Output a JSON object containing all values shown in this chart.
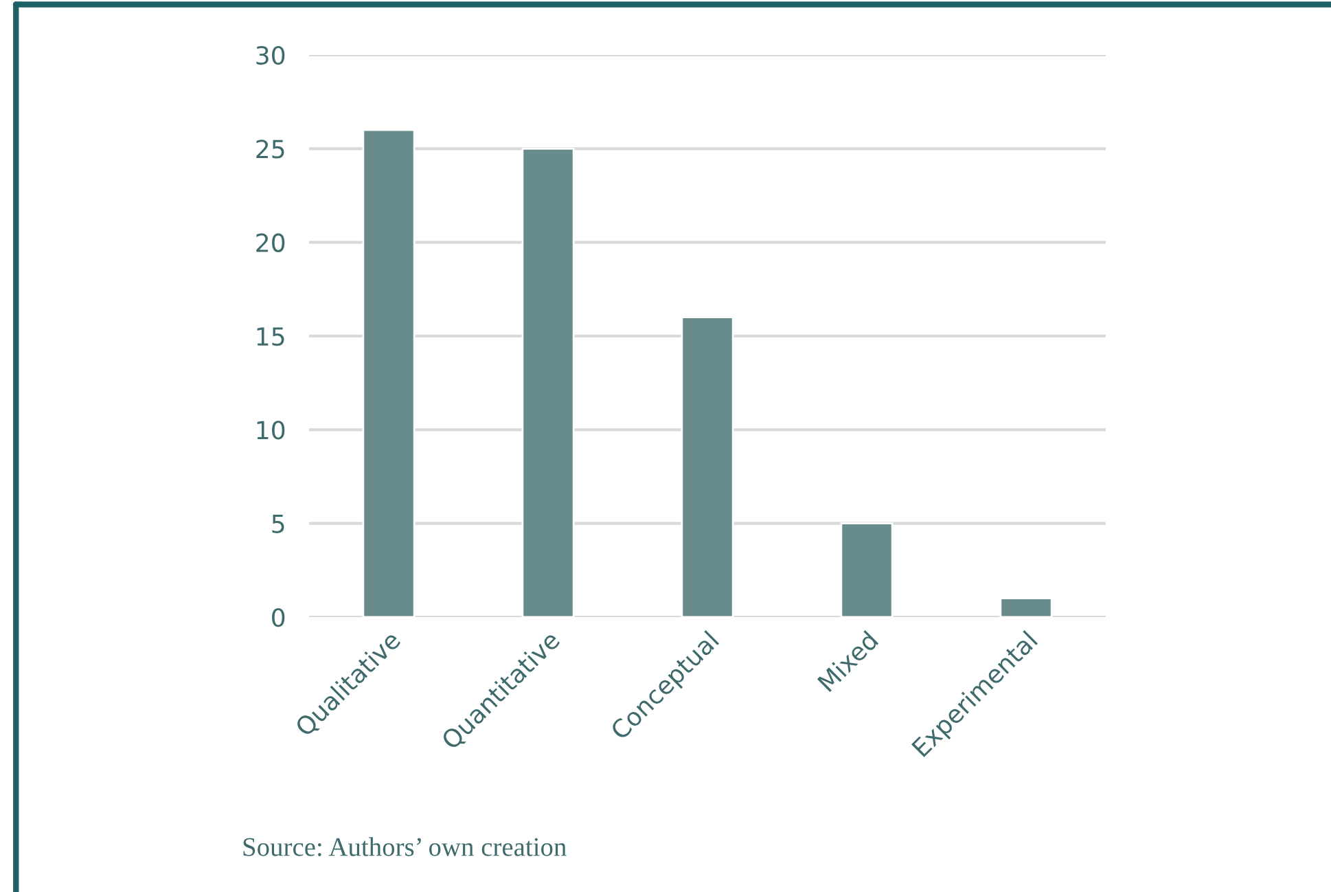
{
  "chart_data": {
    "type": "bar",
    "categories": [
      "Qualitative",
      "Quantitative",
      "Conceptual",
      "Mixed",
      "Experimental"
    ],
    "values": [
      26,
      25,
      16,
      5,
      1
    ],
    "color": "#688c8c",
    "ylim": [
      0,
      30
    ],
    "yticks": [
      0,
      5,
      10,
      15,
      20,
      25,
      30
    ],
    "grid": "y",
    "annotations": [
      "Source: Authors’ own creation"
    ]
  }
}
